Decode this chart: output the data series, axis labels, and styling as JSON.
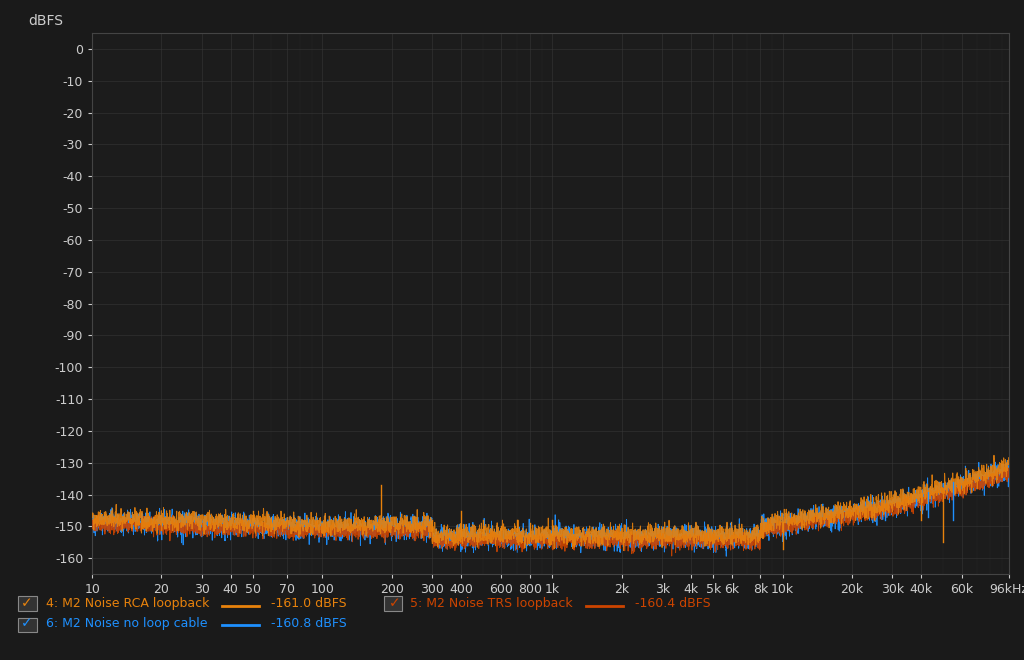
{
  "background_color": "#1a1a1a",
  "plot_bg_color": "#1c1c1c",
  "grid_color": "#3a3a3a",
  "text_color": "#cccccc",
  "title_color": "#cccccc",
  "ylabel": "dBFS",
  "xlim_hz": [
    10,
    96000
  ],
  "ylim": [
    -165,
    5
  ],
  "yticks": [
    0,
    -10,
    -20,
    -30,
    -40,
    -50,
    -60,
    -70,
    -80,
    -90,
    -100,
    -110,
    -120,
    -130,
    -140,
    -150,
    -160
  ],
  "xtick_labels": [
    "10",
    "20",
    "30",
    "40",
    "50",
    "70",
    "100",
    "200",
    "300",
    "400",
    "600",
    "800",
    "1k",
    "2k",
    "3k",
    "4k",
    "5k",
    "6k",
    "8k",
    "10k",
    "20k",
    "30k",
    "40k",
    "60k",
    "96kHz"
  ],
  "xtick_hz": [
    10,
    20,
    30,
    40,
    50,
    70,
    100,
    200,
    300,
    400,
    600,
    800,
    1000,
    2000,
    3000,
    4000,
    5000,
    6000,
    8000,
    10000,
    20000,
    30000,
    40000,
    60000,
    96000
  ],
  "legend_items": [
    {
      "label": "4: M2 Noise RCA loopback",
      "color": "#e8820c",
      "value": "-161.0 dBFS",
      "linestyle": "-"
    },
    {
      "label": "5: M2 Noise TRS loopback",
      "color": "#cc4400",
      "value": "-160.4 dBFS",
      "linestyle": "-"
    },
    {
      "label": "6: M2 Noise no loop cable",
      "color": "#1e90ff",
      "value": "-160.8 dBFS",
      "linestyle": "-"
    }
  ],
  "noise_floor_low": -151,
  "noise_floor_mid": -155,
  "noise_floor_high_start_hz": 20000,
  "noise_rise_end_dbfs": -138
}
